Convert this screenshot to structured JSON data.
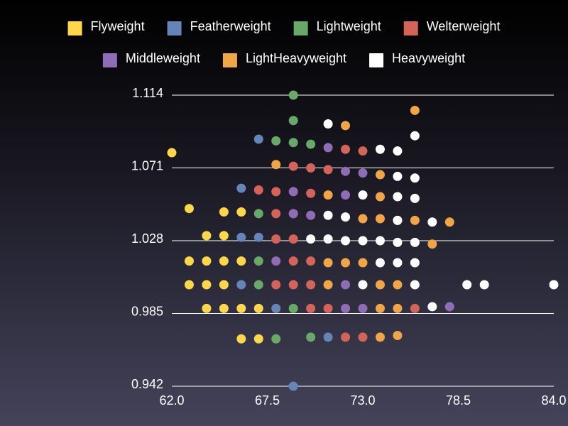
{
  "chart_data": {
    "type": "scatter",
    "title": "",
    "xlabel": "",
    "ylabel": "",
    "xlim": [
      62.0,
      84.0
    ],
    "ylim": [
      0.942,
      1.114
    ],
    "x_ticks": [
      "62.0",
      "67.5",
      "73.0",
      "78.5",
      "84.0"
    ],
    "y_ticks": [
      "0.942",
      "0.985",
      "1.028",
      "1.071",
      "1.114"
    ],
    "grid": "horizontal",
    "legend_position": "top",
    "series": [
      {
        "name": "Flyweight",
        "color": "#fdd74a",
        "points": [
          [
            62,
            1.08
          ],
          [
            63,
            1.047
          ],
          [
            64,
            1.031
          ],
          [
            65,
            1.031
          ],
          [
            65,
            1.045
          ],
          [
            66,
            1.045
          ],
          [
            63,
            1.016
          ],
          [
            64,
            1.016
          ],
          [
            65,
            1.016
          ],
          [
            66,
            1.016
          ],
          [
            63,
            1.002
          ],
          [
            64,
            1.002
          ],
          [
            65,
            1.002
          ],
          [
            64,
            0.988
          ],
          [
            65,
            0.988
          ],
          [
            66,
            0.988
          ],
          [
            67,
            0.988
          ],
          [
            66,
            0.97
          ],
          [
            67,
            0.97
          ]
        ]
      },
      {
        "name": "Featherweight",
        "color": "#6585b9",
        "points": [
          [
            67,
            1.088
          ],
          [
            66,
            1.059
          ],
          [
            66,
            1.03
          ],
          [
            67,
            1.03
          ],
          [
            66,
            1.002
          ],
          [
            68,
            0.988
          ],
          [
            71,
            0.971
          ],
          [
            69,
            0.942
          ]
        ]
      },
      {
        "name": "Lightweight",
        "color": "#68a868",
        "points": [
          [
            69,
            1.114
          ],
          [
            69,
            1.099
          ],
          [
            68,
            1.087
          ],
          [
            69,
            1.086
          ],
          [
            70,
            1.085
          ],
          [
            67,
            1.044
          ],
          [
            67,
            1.016
          ],
          [
            67,
            1.002
          ],
          [
            69,
            0.988
          ],
          [
            68,
            0.97
          ],
          [
            70,
            0.971
          ]
        ]
      },
      {
        "name": "Welterweight",
        "color": "#d4635a",
        "points": [
          [
            72,
            1.082
          ],
          [
            73,
            1.081
          ],
          [
            69,
            1.072
          ],
          [
            70,
            1.071
          ],
          [
            71,
            1.07
          ],
          [
            67,
            1.058
          ],
          [
            68,
            1.057
          ],
          [
            70,
            1.056
          ],
          [
            68,
            1.044
          ],
          [
            69,
            1.044
          ],
          [
            68,
            1.029
          ],
          [
            69,
            1.029
          ],
          [
            69,
            1.016
          ],
          [
            70,
            1.016
          ],
          [
            68,
            1.002
          ],
          [
            69,
            1.002
          ],
          [
            70,
            1.002
          ],
          [
            70,
            0.988
          ],
          [
            71,
            0.988
          ],
          [
            72,
            0.971
          ],
          [
            73,
            0.971
          ],
          [
            76,
            0.988
          ]
        ]
      },
      {
        "name": "Middleweight",
        "color": "#8e6cb6",
        "points": [
          [
            71,
            1.083
          ],
          [
            72,
            1.069
          ],
          [
            73,
            1.068
          ],
          [
            69,
            1.057
          ],
          [
            72,
            1.055
          ],
          [
            69,
            1.044
          ],
          [
            70,
            1.043
          ],
          [
            68,
            1.016
          ],
          [
            72,
            1.002
          ],
          [
            72,
            0.988
          ],
          [
            73,
            0.988
          ],
          [
            78,
            0.989
          ]
        ]
      },
      {
        "name": "LightHeavyweight",
        "color": "#f0a646",
        "points": [
          [
            72,
            1.096
          ],
          [
            76,
            1.105
          ],
          [
            68,
            1.073
          ],
          [
            74,
            1.067
          ],
          [
            71,
            1.055
          ],
          [
            74,
            1.054
          ],
          [
            73,
            1.041
          ],
          [
            74,
            1.041
          ],
          [
            75,
            1.04
          ],
          [
            76,
            1.04
          ],
          [
            78,
            1.039
          ],
          [
            77,
            1.026
          ],
          [
            71,
            1.015
          ],
          [
            72,
            1.015
          ],
          [
            73,
            1.015
          ],
          [
            71,
            1.002
          ],
          [
            74,
            1.002
          ],
          [
            75,
            1.002
          ],
          [
            74,
            0.988
          ],
          [
            75,
            0.988
          ],
          [
            74,
            0.971
          ],
          [
            75,
            0.972
          ]
        ]
      },
      {
        "name": "Heavyweight",
        "color": "#ffffff",
        "points": [
          [
            71,
            1.097
          ],
          [
            76,
            1.09
          ],
          [
            74,
            1.082
          ],
          [
            75,
            1.081
          ],
          [
            75,
            1.066
          ],
          [
            76,
            1.065
          ],
          [
            73,
            1.055
          ],
          [
            75,
            1.054
          ],
          [
            76,
            1.053
          ],
          [
            71,
            1.043
          ],
          [
            72,
            1.042
          ],
          [
            75,
            1.04
          ],
          [
            77,
            1.039
          ],
          [
            70,
            1.029
          ],
          [
            71,
            1.029
          ],
          [
            72,
            1.028
          ],
          [
            73,
            1.028
          ],
          [
            74,
            1.028
          ],
          [
            75,
            1.027
          ],
          [
            76,
            1.027
          ],
          [
            74,
            1.015
          ],
          [
            75,
            1.015
          ],
          [
            76,
            1.015
          ],
          [
            73,
            1.002
          ],
          [
            76,
            1.002
          ],
          [
            79,
            1.002
          ],
          [
            80,
            1.002
          ],
          [
            84,
            1.002
          ],
          [
            77,
            0.989
          ]
        ]
      }
    ]
  }
}
